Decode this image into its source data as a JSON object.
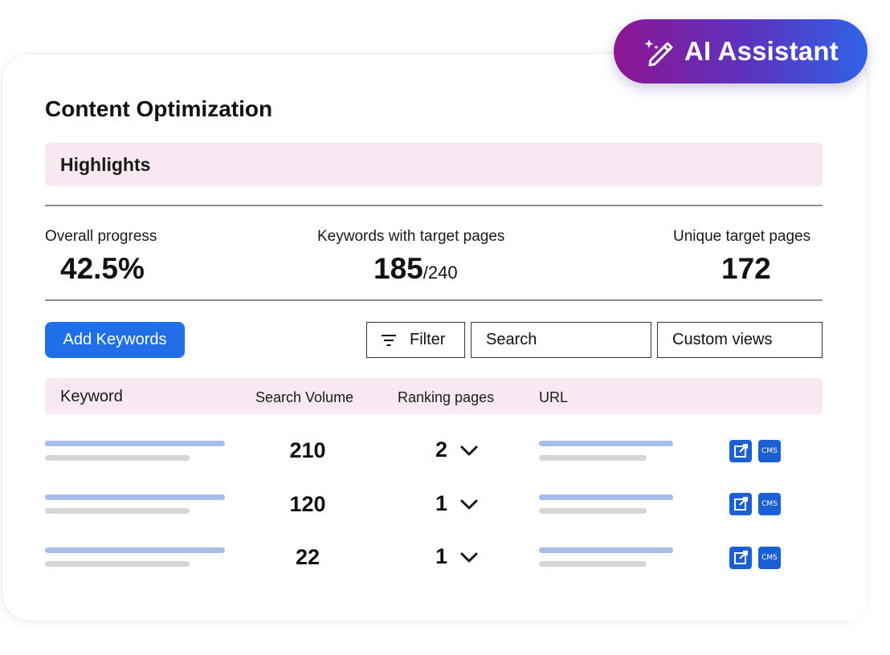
{
  "ai_assistant": {
    "label": "AI Assistant"
  },
  "page": {
    "title": "Content Optimization"
  },
  "highlights": {
    "label": "Highlights"
  },
  "stats": {
    "overall_progress": {
      "label": "Overall progress",
      "value": "42.5%"
    },
    "keywords_with_targets": {
      "label": "Keywords with target pages",
      "value": "185",
      "denominator": "/240"
    },
    "unique_targets": {
      "label": "Unique target pages",
      "value": "172"
    }
  },
  "toolbar": {
    "add_keywords": "Add Keywords",
    "filter": "Filter",
    "search": "Search",
    "custom_views": "Custom views"
  },
  "table": {
    "columns": [
      "Keyword",
      "Search Volume",
      "Ranking pages",
      "URL"
    ],
    "rows": [
      {
        "search_volume": "210",
        "ranking_pages": "2",
        "cms": "CMS"
      },
      {
        "search_volume": "120",
        "ranking_pages": "1",
        "cms": "CMS"
      },
      {
        "search_volume": "22",
        "ranking_pages": "1",
        "cms": "CMS"
      }
    ]
  },
  "icons": {
    "ai": "magic-wand-icon",
    "filter": "filter-icon",
    "ranking_expand": "chevron-down-icon",
    "edit": "external-edit-icon",
    "cms": "cms-icon"
  },
  "colors": {
    "ai_gradient_start": "#8d1592",
    "ai_gradient_end": "#2f63e6",
    "primary": "#1f6fe8",
    "highlight_bg": "#f7e8f2",
    "placeholder_blue": "#a5bde8",
    "placeholder_gray": "#d6d6d6",
    "icon_blue": "#1a5fd4"
  }
}
